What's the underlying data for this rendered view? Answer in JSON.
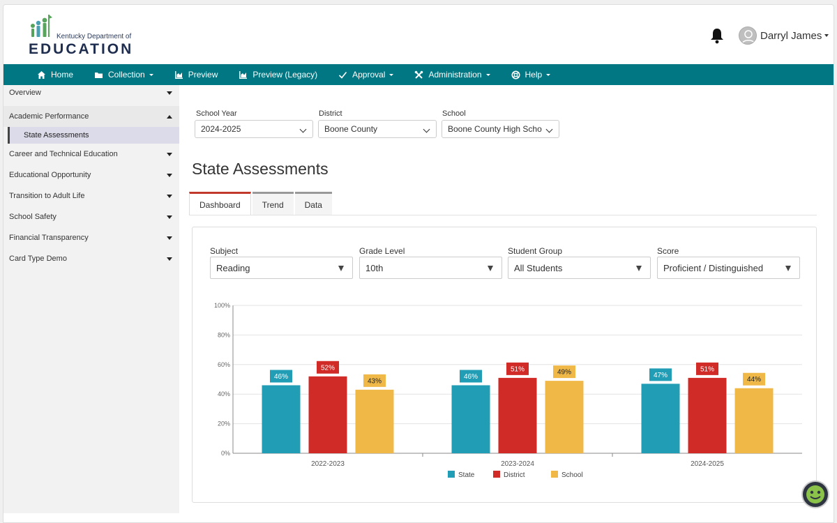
{
  "header": {
    "logo_small": "Kentucky Department of",
    "logo_big": "EDUCATION",
    "user_name": "Darryl James"
  },
  "nav": {
    "items": [
      {
        "label": "Home",
        "icon": "home-icon",
        "dropdown": false
      },
      {
        "label": "Collection",
        "icon": "folder-icon",
        "dropdown": true
      },
      {
        "label": "Preview",
        "icon": "chart-area-icon",
        "dropdown": false
      },
      {
        "label": "Preview (Legacy)",
        "icon": "chart-area-icon",
        "dropdown": false
      },
      {
        "label": "Approval",
        "icon": "check-icon",
        "dropdown": true
      },
      {
        "label": "Administration",
        "icon": "tools-icon",
        "dropdown": true
      },
      {
        "label": "Help",
        "icon": "lifebuoy-icon",
        "dropdown": true
      }
    ]
  },
  "sidebar": {
    "items": [
      {
        "label": "Overview"
      },
      {
        "label": "Academic Performance"
      },
      {
        "label": "State Assessments"
      },
      {
        "label": "Career and Technical Education"
      },
      {
        "label": "Educational Opportunity"
      },
      {
        "label": "Transition to Adult Life"
      },
      {
        "label": "School Safety"
      },
      {
        "label": "Financial Transparency"
      },
      {
        "label": "Card Type Demo"
      }
    ]
  },
  "filters": {
    "school_year": {
      "label": "School Year",
      "value": "2024-2025"
    },
    "district": {
      "label": "District",
      "value": "Boone County"
    },
    "school": {
      "label": "School",
      "value": "Boone County High Scho"
    }
  },
  "page_title": "State Assessments",
  "tabs": [
    "Dashboard",
    "Trend",
    "Data"
  ],
  "card_filters": {
    "subject": {
      "label": "Subject",
      "value": "Reading"
    },
    "grade": {
      "label": "Grade Level",
      "value": "10th"
    },
    "group": {
      "label": "Student Group",
      "value": "All Students"
    },
    "score": {
      "label": "Score",
      "value": "Proficient / Distinguished"
    }
  },
  "colors": {
    "nav_bg": "#007782",
    "state": "#219eb5",
    "district": "#d12b28",
    "school": "#f0b847",
    "active_tab": "#c0392b"
  },
  "chart_data": {
    "type": "bar",
    "categories": [
      "2022-2023",
      "2023-2024",
      "2024-2025"
    ],
    "series": [
      {
        "name": "State",
        "values": [
          46,
          46,
          47
        ],
        "labels": [
          "46%",
          "46%",
          "47%"
        ],
        "color": "#219eb5"
      },
      {
        "name": "District",
        "values": [
          52,
          51,
          51
        ],
        "labels": [
          "52%",
          "51%",
          "51%"
        ],
        "color": "#d12b28"
      },
      {
        "name": "School",
        "values": [
          43,
          49,
          44
        ],
        "labels": [
          "43%",
          "49%",
          "44%"
        ],
        "color": "#f0b847"
      }
    ],
    "yticks": [
      "0%",
      "20%",
      "40%",
      "60%",
      "80%",
      "100%"
    ],
    "ylim": [
      0,
      100
    ],
    "grid": true,
    "legend": "bottom-center"
  }
}
